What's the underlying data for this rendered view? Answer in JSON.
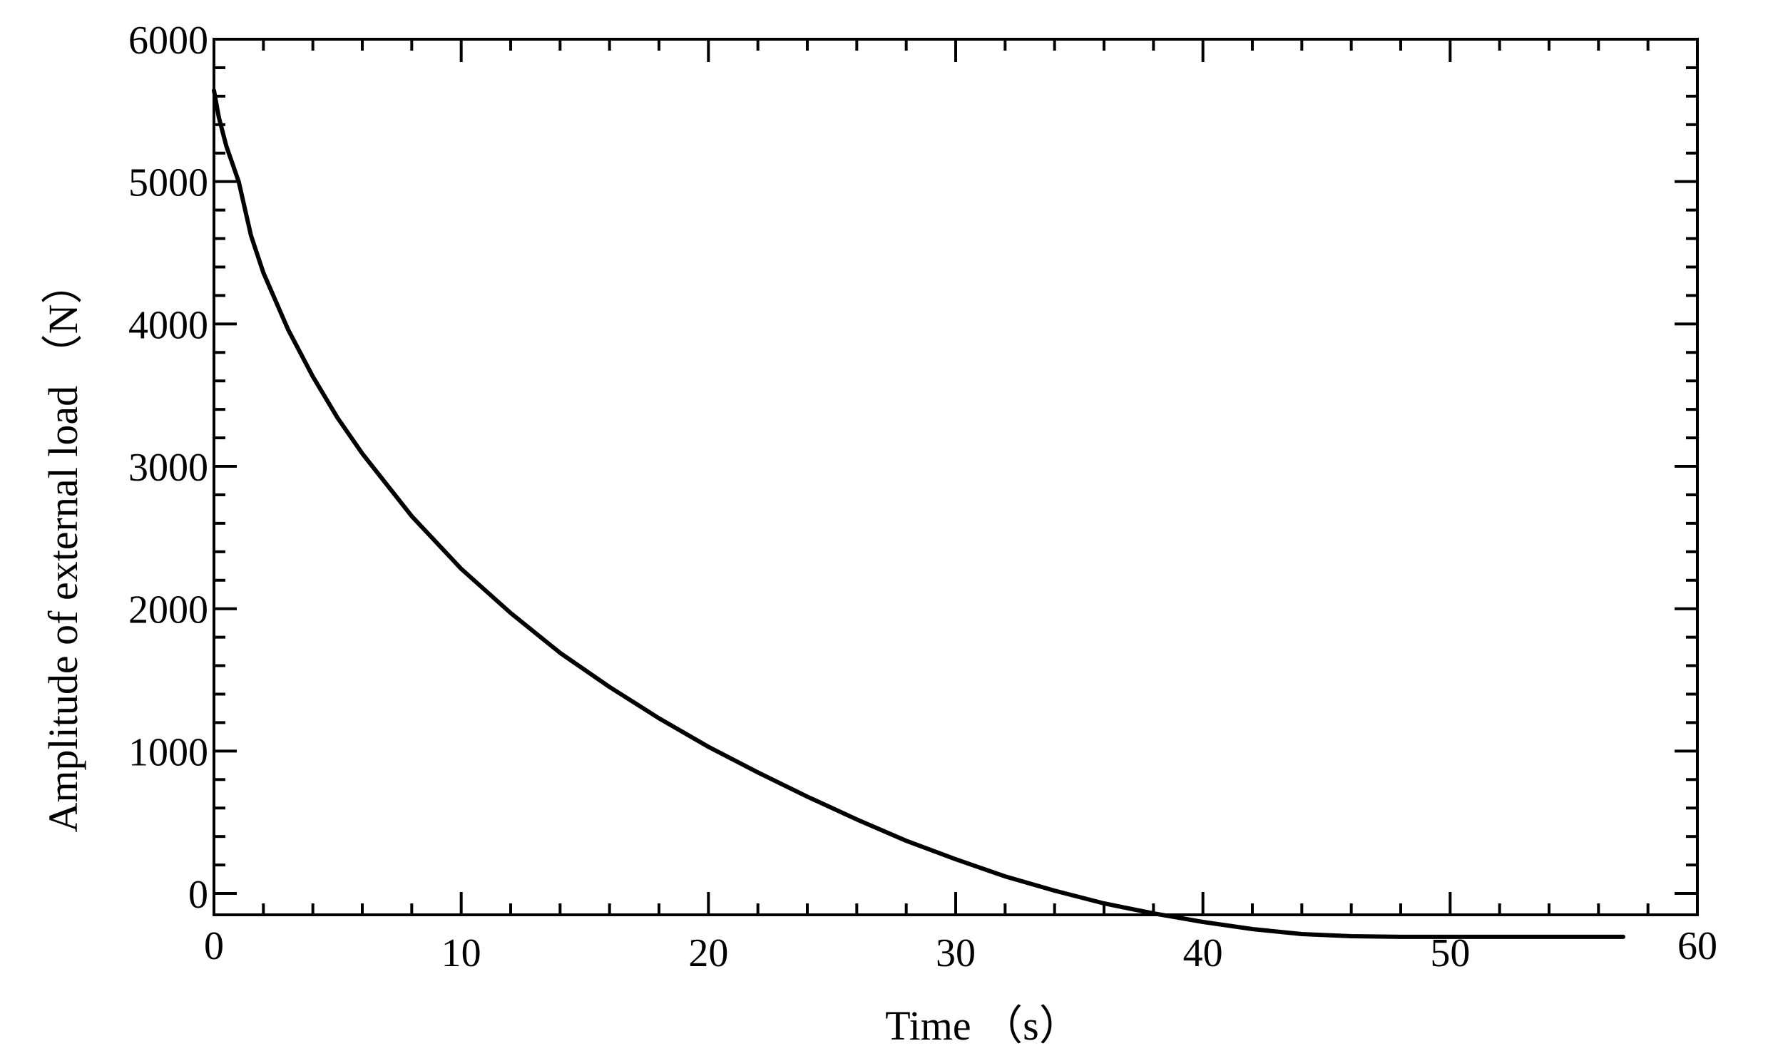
{
  "chart_data": {
    "type": "line",
    "title": "",
    "xlabel": "Time （s）",
    "ylabel": "Amplitude of external load （N）",
    "xlim": [
      0,
      60
    ],
    "ylim": [
      -150,
      6000
    ],
    "x_ticks": [
      0,
      10,
      20,
      30,
      40,
      50,
      60
    ],
    "x_tick_labels": [
      "0",
      "10",
      "20",
      "30",
      "40",
      "50",
      "60"
    ],
    "y_ticks": [
      0,
      1000,
      2000,
      3000,
      4000,
      5000,
      6000
    ],
    "y_tick_labels": [
      "0",
      "1000",
      "2000",
      "3000",
      "4000",
      "5000",
      "6000"
    ],
    "x_minor_step": 2,
    "y_minor_step": 200,
    "grid": false,
    "legend": "none",
    "series": [
      {
        "color": "#000000",
        "x": [
          0,
          0.2,
          0.5,
          1,
          1.5,
          2,
          3,
          4,
          5,
          6,
          8,
          10,
          12,
          14,
          16,
          18,
          20,
          22,
          24,
          26,
          28,
          30,
          32,
          34,
          36,
          38,
          40,
          42,
          44,
          46,
          48,
          50,
          52,
          54,
          56,
          57
        ],
        "y": [
          5640,
          5450,
          5250,
          5000,
          4620,
          4360,
          3960,
          3630,
          3340,
          3090,
          2650,
          2280,
          1970,
          1690,
          1450,
          1230,
          1030,
          850,
          680,
          520,
          370,
          240,
          120,
          20,
          -70,
          -140,
          -200,
          -250,
          -285,
          -300,
          -305,
          -305,
          -305,
          -305,
          -305,
          -305
        ]
      }
    ]
  }
}
